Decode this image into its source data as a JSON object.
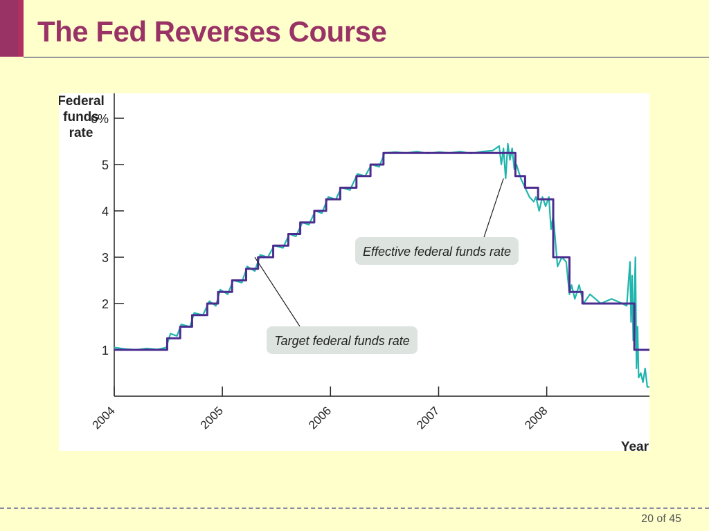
{
  "slide": {
    "title": "The Fed Reverses Course",
    "page_number": "20 of 45"
  },
  "colors": {
    "background": "#ffffcc",
    "title": "#993366",
    "target_line": "#4b2d8f",
    "effective_line": "#1fb5ad",
    "annotation_box": "#dde3df"
  },
  "chart_data": {
    "type": "line",
    "title": "",
    "ylabel": [
      "Federal",
      "funds",
      "rate"
    ],
    "xlabel": "Year",
    "xlim": [
      2004.0,
      2008.95
    ],
    "ylim": [
      0,
      6
    ],
    "x_ticks": [
      2004,
      2005,
      2006,
      2007,
      2008
    ],
    "x_tick_labels": [
      "2004",
      "2005",
      "2006",
      "2007",
      "2008"
    ],
    "y_ticks": [
      1,
      2,
      3,
      4,
      5,
      6
    ],
    "y_tick_labels": [
      "1",
      "2",
      "3",
      "4",
      "5",
      "6%"
    ],
    "grid": false,
    "annotations": [
      {
        "text": "Effective federal funds rate",
        "series": "Effective federal funds rate",
        "point": [
          2007.6,
          4.7
        ]
      },
      {
        "text": "Target federal funds rate",
        "series": "Target federal funds rate",
        "point": [
          2005.3,
          3.0
        ]
      }
    ],
    "series": [
      {
        "name": "Target federal funds rate",
        "step": true,
        "x": [
          2004.0,
          2004.49,
          2004.61,
          2004.72,
          2004.86,
          2004.96,
          2005.09,
          2005.22,
          2005.33,
          2005.47,
          2005.61,
          2005.72,
          2005.85,
          2005.96,
          2006.09,
          2006.24,
          2006.37,
          2006.49,
          2007.71,
          2007.8,
          2007.92,
          2008.06,
          2008.21,
          2008.33,
          2008.81,
          2008.95
        ],
        "values": [
          1.0,
          1.25,
          1.5,
          1.75,
          2.0,
          2.25,
          2.5,
          2.75,
          3.0,
          3.25,
          3.5,
          3.75,
          4.0,
          4.25,
          4.5,
          4.75,
          5.0,
          5.25,
          4.75,
          4.5,
          4.25,
          3.0,
          2.25,
          2.0,
          1.0,
          1.0
        ]
      },
      {
        "name": "Effective federal funds rate",
        "x": [
          2004.0,
          2004.1,
          2004.2,
          2004.3,
          2004.4,
          2004.48,
          2004.52,
          2004.58,
          2004.62,
          2004.7,
          2004.74,
          2004.82,
          2004.88,
          2004.94,
          2004.98,
          2005.05,
          2005.1,
          2005.18,
          2005.23,
          2005.3,
          2005.35,
          2005.42,
          2005.48,
          2005.56,
          2005.62,
          2005.68,
          2005.74,
          2005.8,
          2005.86,
          2005.92,
          2005.98,
          2006.05,
          2006.1,
          2006.18,
          2006.25,
          2006.32,
          2006.38,
          2006.45,
          2006.5,
          2006.6,
          2006.7,
          2006.8,
          2006.9,
          2007.0,
          2007.1,
          2007.2,
          2007.3,
          2007.4,
          2007.5,
          2007.56,
          2007.58,
          2007.6,
          2007.62,
          2007.64,
          2007.66,
          2007.68,
          2007.7,
          2007.72,
          2007.76,
          2007.8,
          2007.84,
          2007.88,
          2007.9,
          2007.93,
          2007.96,
          2007.99,
          2008.02,
          2008.04,
          2008.06,
          2008.1,
          2008.14,
          2008.18,
          2008.21,
          2008.23,
          2008.26,
          2008.3,
          2008.34,
          2008.4,
          2008.5,
          2008.6,
          2008.7,
          2008.74,
          2008.77,
          2008.78,
          2008.79,
          2008.8,
          2008.82,
          2008.83,
          2008.84,
          2008.85,
          2008.87,
          2008.89,
          2008.91,
          2008.93,
          2008.95
        ],
        "values": [
          1.05,
          1.02,
          1.0,
          1.03,
          1.01,
          1.05,
          1.35,
          1.3,
          1.55,
          1.5,
          1.8,
          1.75,
          2.05,
          1.95,
          2.3,
          2.2,
          2.5,
          2.45,
          2.8,
          2.7,
          3.05,
          3.0,
          3.25,
          3.2,
          3.5,
          3.45,
          3.75,
          3.7,
          4.0,
          3.95,
          4.3,
          4.25,
          4.5,
          4.45,
          4.8,
          4.75,
          5.0,
          4.95,
          5.25,
          5.27,
          5.25,
          5.28,
          5.24,
          5.27,
          5.25,
          5.28,
          5.24,
          5.28,
          5.3,
          5.4,
          5.0,
          5.35,
          4.7,
          5.45,
          5.1,
          5.35,
          4.9,
          5.0,
          4.7,
          4.5,
          4.3,
          4.2,
          4.3,
          4.0,
          4.3,
          4.1,
          4.3,
          3.6,
          3.9,
          2.8,
          3.0,
          2.9,
          2.2,
          2.4,
          2.1,
          2.4,
          2.0,
          2.2,
          2.0,
          2.1,
          2.0,
          1.95,
          2.9,
          1.6,
          2.6,
          1.2,
          3.0,
          0.6,
          1.5,
          0.4,
          0.5,
          0.3,
          0.6,
          0.2,
          0.2
        ]
      }
    ]
  }
}
